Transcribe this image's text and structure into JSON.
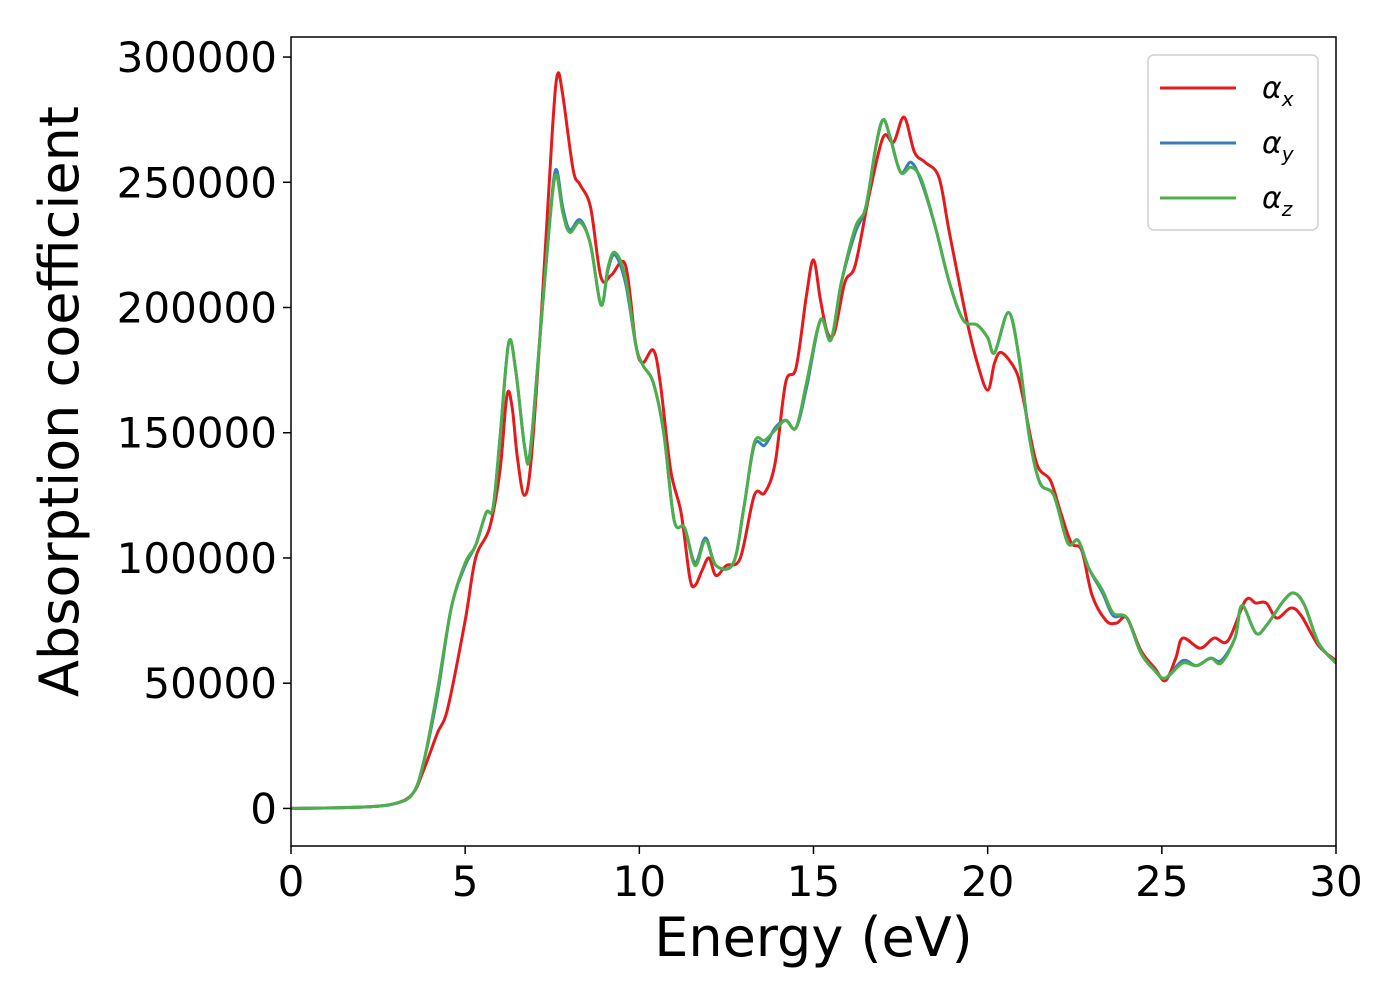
{
  "chart_data": {
    "type": "line",
    "title": "",
    "xlabel": "Energy (eV)",
    "ylabel": "Absorption coefficient",
    "xlim": [
      0,
      30
    ],
    "ylim": [
      -15000,
      308000
    ],
    "xticks": [
      0,
      5,
      10,
      15,
      20,
      25,
      30
    ],
    "yticks": [
      0,
      50000,
      100000,
      150000,
      200000,
      250000,
      300000
    ],
    "xtick_labels": [
      "0",
      "5",
      "10",
      "15",
      "20",
      "25",
      "30"
    ],
    "ytick_labels": [
      "0",
      "50000",
      "100000",
      "150000",
      "200000",
      "250000",
      "300000"
    ],
    "grid": false,
    "legend_position": "top-right",
    "series": [
      {
        "name": "α_x",
        "symbol": "α",
        "subscript": "x",
        "color": "#e41a1c",
        "points": [
          [
            0,
            0
          ],
          [
            2,
            500
          ],
          [
            3,
            2000
          ],
          [
            3.5,
            6000
          ],
          [
            3.8,
            15000
          ],
          [
            4.2,
            30000
          ],
          [
            4.5,
            40000
          ],
          [
            5,
            75000
          ],
          [
            5.3,
            100000
          ],
          [
            5.7,
            112000
          ],
          [
            6,
            135000
          ],
          [
            6.2,
            165000
          ],
          [
            6.35,
            160000
          ],
          [
            6.5,
            140000
          ],
          [
            6.7,
            125000
          ],
          [
            6.9,
            140000
          ],
          [
            7.2,
            200000
          ],
          [
            7.5,
            270000
          ],
          [
            7.65,
            293000
          ],
          [
            7.8,
            285000
          ],
          [
            8.1,
            255000
          ],
          [
            8.3,
            249000
          ],
          [
            8.6,
            240000
          ],
          [
            8.9,
            212000
          ],
          [
            9.2,
            213000
          ],
          [
            9.6,
            217000
          ],
          [
            9.9,
            185000
          ],
          [
            10.1,
            178000
          ],
          [
            10.4,
            183000
          ],
          [
            10.6,
            170000
          ],
          [
            10.9,
            135000
          ],
          [
            11.2,
            118000
          ],
          [
            11.45,
            92000
          ],
          [
            11.6,
            89000
          ],
          [
            11.8,
            95000
          ],
          [
            12,
            100000
          ],
          [
            12.2,
            93000
          ],
          [
            12.5,
            97000
          ],
          [
            12.9,
            100000
          ],
          [
            13.3,
            125000
          ],
          [
            13.6,
            126000
          ],
          [
            13.9,
            138000
          ],
          [
            14.2,
            170000
          ],
          [
            14.5,
            176000
          ],
          [
            14.8,
            205000
          ],
          [
            15,
            219000
          ],
          [
            15.2,
            203000
          ],
          [
            15.4,
            190000
          ],
          [
            15.6,
            190000
          ],
          [
            15.9,
            210000
          ],
          [
            16.2,
            217000
          ],
          [
            16.6,
            245000
          ],
          [
            17,
            268000
          ],
          [
            17.3,
            266000
          ],
          [
            17.6,
            276000
          ],
          [
            17.9,
            262000
          ],
          [
            18.2,
            258000
          ],
          [
            18.6,
            252000
          ],
          [
            18.9,
            230000
          ],
          [
            19.4,
            195000
          ],
          [
            19.7,
            178000
          ],
          [
            20,
            167000
          ],
          [
            20.2,
            178000
          ],
          [
            20.4,
            182000
          ],
          [
            20.8,
            175000
          ],
          [
            21,
            165000
          ],
          [
            21.4,
            138000
          ],
          [
            21.8,
            131000
          ],
          [
            22.1,
            118000
          ],
          [
            22.4,
            106000
          ],
          [
            22.7,
            103000
          ],
          [
            23,
            85000
          ],
          [
            23.4,
            75000
          ],
          [
            23.7,
            74000
          ],
          [
            24,
            76000
          ],
          [
            24.4,
            63000
          ],
          [
            24.8,
            56000
          ],
          [
            25.1,
            51000
          ],
          [
            25.4,
            60000
          ],
          [
            25.6,
            68000
          ],
          [
            26.1,
            64000
          ],
          [
            26.5,
            68000
          ],
          [
            26.9,
            67000
          ],
          [
            27.4,
            83000
          ],
          [
            27.7,
            82000
          ],
          [
            28,
            82000
          ],
          [
            28.3,
            76000
          ],
          [
            28.7,
            80000
          ],
          [
            29,
            77000
          ],
          [
            29.5,
            65000
          ],
          [
            30,
            59000
          ]
        ]
      },
      {
        "name": "α_y",
        "symbol": "α",
        "subscript": "y",
        "color": "#377eb8",
        "points": [
          [
            0,
            0
          ],
          [
            2,
            500
          ],
          [
            3,
            2000
          ],
          [
            3.5,
            6000
          ],
          [
            3.8,
            18000
          ],
          [
            4.2,
            45000
          ],
          [
            4.6,
            80000
          ],
          [
            5,
            97000
          ],
          [
            5.3,
            105000
          ],
          [
            5.6,
            118000
          ],
          [
            5.8,
            120000
          ],
          [
            6,
            148000
          ],
          [
            6.25,
            186000
          ],
          [
            6.45,
            175000
          ],
          [
            6.7,
            145000
          ],
          [
            6.85,
            141000
          ],
          [
            7.1,
            180000
          ],
          [
            7.4,
            230000
          ],
          [
            7.6,
            255000
          ],
          [
            7.8,
            240000
          ],
          [
            8,
            231000
          ],
          [
            8.3,
            235000
          ],
          [
            8.6,
            225000
          ],
          [
            8.9,
            201000
          ],
          [
            9.1,
            215000
          ],
          [
            9.3,
            221000
          ],
          [
            9.6,
            210000
          ],
          [
            9.9,
            185000
          ],
          [
            10.1,
            177000
          ],
          [
            10.4,
            170000
          ],
          [
            10.7,
            150000
          ],
          [
            11,
            115000
          ],
          [
            11.3,
            112000
          ],
          [
            11.6,
            98000
          ],
          [
            11.9,
            108000
          ],
          [
            12.2,
            97000
          ],
          [
            12.7,
            98000
          ],
          [
            13,
            120000
          ],
          [
            13.3,
            145000
          ],
          [
            13.6,
            145000
          ],
          [
            13.9,
            152000
          ],
          [
            14.2,
            155000
          ],
          [
            14.5,
            152000
          ],
          [
            14.8,
            168000
          ],
          [
            15.2,
            195000
          ],
          [
            15.5,
            187000
          ],
          [
            15.8,
            210000
          ],
          [
            16.2,
            230000
          ],
          [
            16.5,
            240000
          ],
          [
            16.8,
            265000
          ],
          [
            17,
            275000
          ],
          [
            17.2,
            268000
          ],
          [
            17.5,
            254000
          ],
          [
            17.8,
            258000
          ],
          [
            18.1,
            250000
          ],
          [
            18.5,
            232000
          ],
          [
            18.9,
            210000
          ],
          [
            19.3,
            195000
          ],
          [
            19.7,
            193000
          ],
          [
            20,
            188000
          ],
          [
            20.2,
            182000
          ],
          [
            20.6,
            198000
          ],
          [
            20.9,
            180000
          ],
          [
            21.2,
            148000
          ],
          [
            21.5,
            130000
          ],
          [
            21.9,
            125000
          ],
          [
            22.3,
            106000
          ],
          [
            22.6,
            107000
          ],
          [
            22.9,
            96000
          ],
          [
            23.3,
            86000
          ],
          [
            23.6,
            77000
          ],
          [
            24,
            76000
          ],
          [
            24.4,
            62000
          ],
          [
            24.8,
            55000
          ],
          [
            25.1,
            52000
          ],
          [
            25.6,
            59000
          ],
          [
            26,
            57000
          ],
          [
            26.4,
            60000
          ],
          [
            26.7,
            59000
          ],
          [
            27.1,
            68000
          ],
          [
            27.3,
            81000
          ],
          [
            27.7,
            70000
          ],
          [
            28,
            73000
          ],
          [
            28.5,
            83000
          ],
          [
            28.8,
            86000
          ],
          [
            29.1,
            81000
          ],
          [
            29.5,
            66000
          ],
          [
            30,
            58000
          ]
        ]
      },
      {
        "name": "α_z",
        "symbol": "α",
        "subscript": "z",
        "color": "#4daf4a",
        "points": [
          [
            0,
            0
          ],
          [
            2,
            500
          ],
          [
            3,
            2000
          ],
          [
            3.5,
            6000
          ],
          [
            3.8,
            18000
          ],
          [
            4.2,
            47000
          ],
          [
            4.6,
            80000
          ],
          [
            5,
            98000
          ],
          [
            5.3,
            105000
          ],
          [
            5.6,
            118000
          ],
          [
            5.8,
            120000
          ],
          [
            6,
            148000
          ],
          [
            6.25,
            186000
          ],
          [
            6.45,
            175000
          ],
          [
            6.7,
            145000
          ],
          [
            6.85,
            140000
          ],
          [
            7.1,
            180000
          ],
          [
            7.4,
            230000
          ],
          [
            7.6,
            253000
          ],
          [
            7.8,
            238000
          ],
          [
            8,
            230000
          ],
          [
            8.3,
            234000
          ],
          [
            8.6,
            225000
          ],
          [
            8.9,
            201000
          ],
          [
            9.1,
            216000
          ],
          [
            9.3,
            222000
          ],
          [
            9.6,
            212000
          ],
          [
            9.9,
            185000
          ],
          [
            10.1,
            177000
          ],
          [
            10.4,
            170000
          ],
          [
            10.7,
            150000
          ],
          [
            11,
            115000
          ],
          [
            11.3,
            112000
          ],
          [
            11.6,
            97000
          ],
          [
            11.9,
            107000
          ],
          [
            12.2,
            97000
          ],
          [
            12.7,
            98000
          ],
          [
            13,
            120000
          ],
          [
            13.3,
            146000
          ],
          [
            13.6,
            147000
          ],
          [
            13.9,
            151000
          ],
          [
            14.2,
            155000
          ],
          [
            14.5,
            152000
          ],
          [
            14.8,
            170000
          ],
          [
            15.2,
            195000
          ],
          [
            15.5,
            187000
          ],
          [
            15.8,
            210000
          ],
          [
            16.2,
            232000
          ],
          [
            16.5,
            240000
          ],
          [
            16.8,
            265000
          ],
          [
            17,
            275000
          ],
          [
            17.2,
            268000
          ],
          [
            17.5,
            254000
          ],
          [
            17.8,
            256000
          ],
          [
            18.1,
            251000
          ],
          [
            18.5,
            232000
          ],
          [
            18.9,
            210000
          ],
          [
            19.3,
            195000
          ],
          [
            19.7,
            193000
          ],
          [
            20,
            188000
          ],
          [
            20.2,
            182000
          ],
          [
            20.6,
            198000
          ],
          [
            20.9,
            180000
          ],
          [
            21.2,
            148000
          ],
          [
            21.5,
            130000
          ],
          [
            21.9,
            125000
          ],
          [
            22.3,
            106000
          ],
          [
            22.6,
            107000
          ],
          [
            22.9,
            96000
          ],
          [
            23.3,
            87000
          ],
          [
            23.6,
            78000
          ],
          [
            24,
            76000
          ],
          [
            24.4,
            62000
          ],
          [
            24.8,
            55000
          ],
          [
            25.1,
            52000
          ],
          [
            25.6,
            58000
          ],
          [
            26,
            57000
          ],
          [
            26.4,
            60000
          ],
          [
            26.7,
            58000
          ],
          [
            27.1,
            68000
          ],
          [
            27.3,
            81000
          ],
          [
            27.7,
            70000
          ],
          [
            28,
            73000
          ],
          [
            28.5,
            83000
          ],
          [
            28.8,
            86000
          ],
          [
            29.1,
            81000
          ],
          [
            29.5,
            66000
          ],
          [
            30,
            58000
          ]
        ]
      }
    ]
  }
}
